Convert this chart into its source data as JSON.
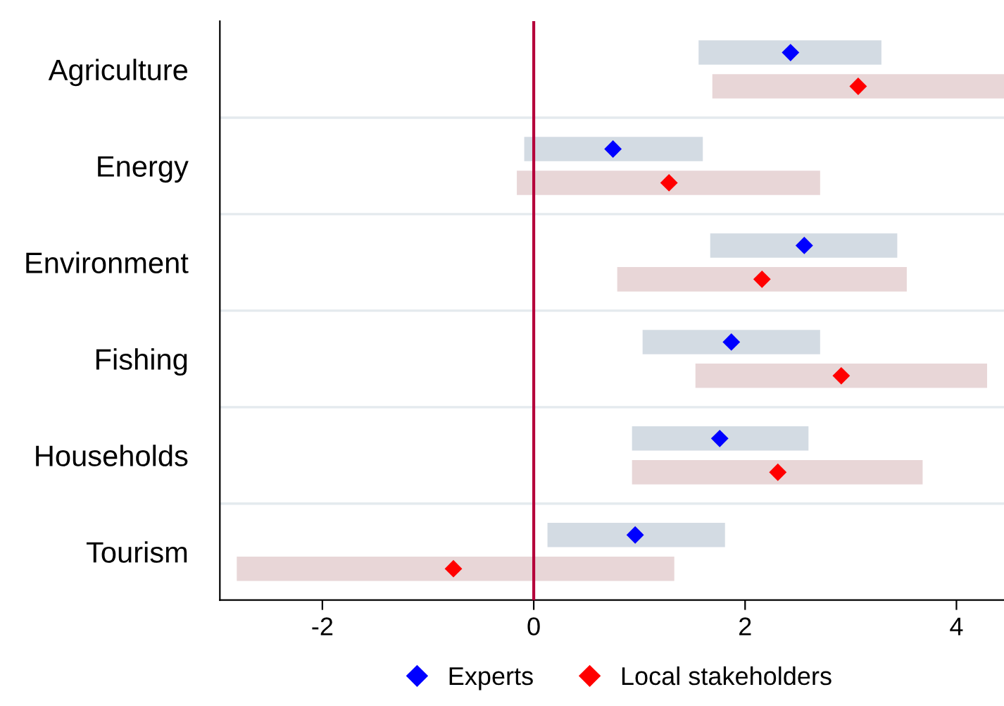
{
  "chart_data": {
    "type": "bar",
    "orientation": "horizontal",
    "categories": [
      "Agriculture",
      "Energy",
      "Environment",
      "Fishing",
      "Households",
      "Tourism"
    ],
    "series": [
      {
        "color": "#d3dbe3",
        "base": [
          1.56,
          -0.09,
          1.67,
          1.03,
          0.93,
          0.13
        ],
        "values": [
          1.73,
          1.69,
          1.77,
          1.68,
          1.67,
          1.68
        ]
      },
      {
        "color": "#e8d6d7",
        "base": [
          1.69,
          -0.16,
          0.79,
          1.53,
          0.93,
          -2.81
        ],
        "values": [
          2.76,
          2.87,
          2.74,
          2.76,
          2.75,
          4.14
        ]
      },
      {
        "type": "scatter",
        "name": "Experts",
        "color": "#0000ff",
        "values": [
          2.43,
          0.75,
          2.56,
          1.87,
          1.76,
          0.96
        ]
      },
      {
        "type": "scatter",
        "name": "Local stakeholders",
        "color": "#ff0000",
        "values": [
          3.07,
          1.28,
          2.16,
          2.91,
          2.31,
          -0.76
        ]
      }
    ],
    "xlim": [
      -2.97,
      4.45
    ],
    "xticks": [
      -2,
      0,
      2,
      4
    ],
    "ref_lines": [
      {
        "axis": "x",
        "value": 0,
        "color": "#b5003a"
      }
    ],
    "grid": "y",
    "legend": "bottom",
    "marker": "diamond"
  }
}
